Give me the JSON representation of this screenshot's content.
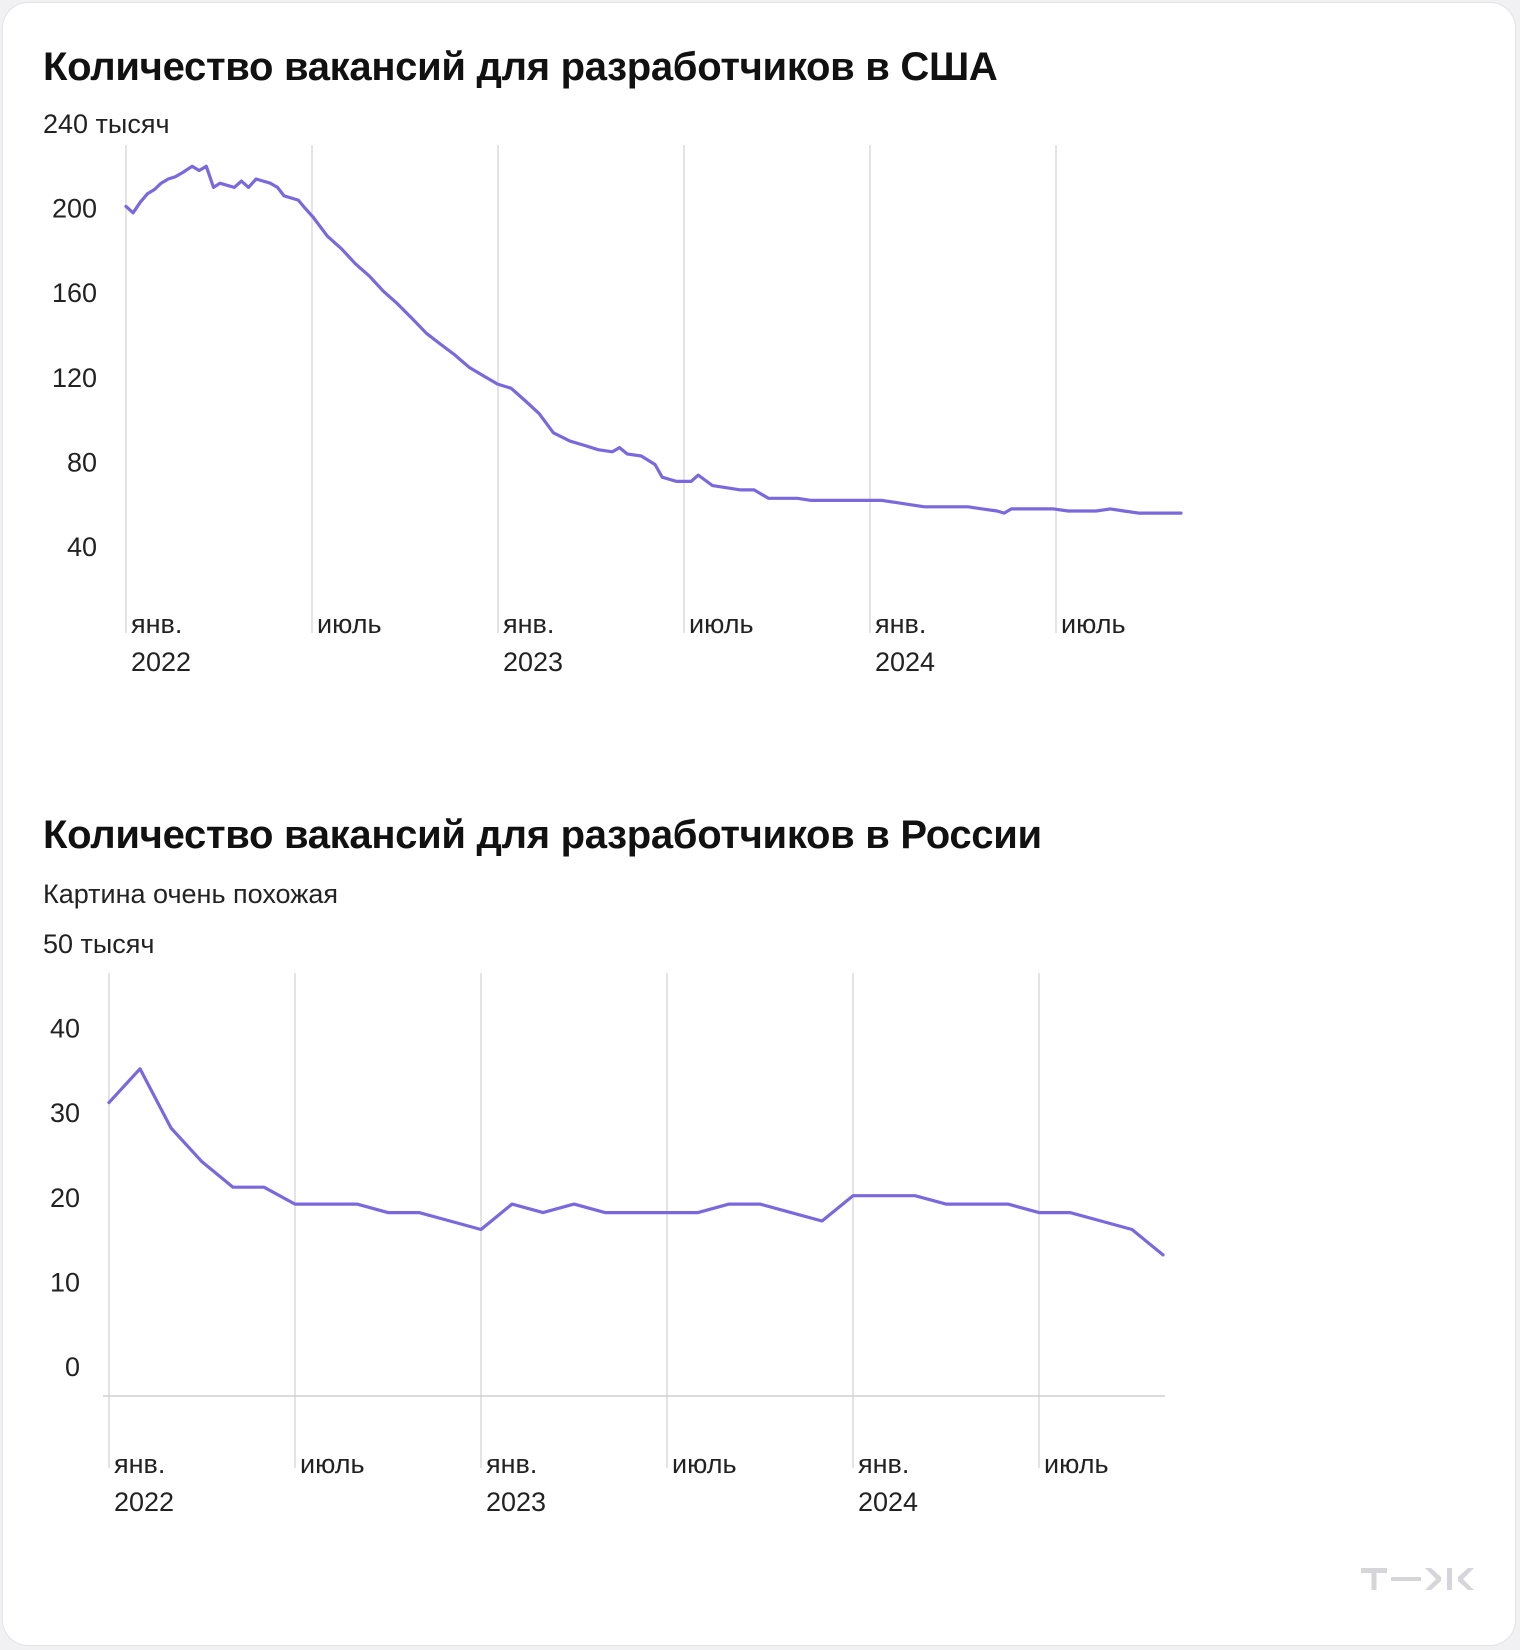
{
  "charts": [
    {
      "title": "Количество вакансий для разработчиков в США",
      "subtitle": "",
      "chart_data": {
        "type": "line",
        "title": "Количество вакансий для разработчиков в США",
        "xlabel": "",
        "ylabel": "",
        "x_range": [
          "2022-01",
          "2024-11"
        ],
        "ylim": [
          40,
          240
        ],
        "y_ticks": [
          {
            "value": 240,
            "label": "240 тысяч"
          },
          {
            "value": 200,
            "label": "200"
          },
          {
            "value": 160,
            "label": "160"
          },
          {
            "value": 120,
            "label": "120"
          },
          {
            "value": 80,
            "label": "80"
          },
          {
            "value": 40,
            "label": "40"
          }
        ],
        "x_ticks": [
          {
            "x": "2022-01",
            "line1": "янв.",
            "line2": "2022"
          },
          {
            "x": "2022-07",
            "line1": "июль",
            "line2": ""
          },
          {
            "x": "2023-01",
            "line1": "янв.",
            "line2": "2023"
          },
          {
            "x": "2023-07",
            "line1": "июль",
            "line2": ""
          },
          {
            "x": "2024-01",
            "line1": "янв.",
            "line2": "2024"
          },
          {
            "x": "2024-07",
            "line1": "июль",
            "line2": ""
          }
        ],
        "grid": "vertical",
        "series": [
          {
            "color": "#7b68dc",
            "points": [
              [
                "2022-01-01",
                210
              ],
              [
                "2022-01-08",
                207
              ],
              [
                "2022-01-15",
                212
              ],
              [
                "2022-01-22",
                216
              ],
              [
                "2022-01-29",
                218
              ],
              [
                "2022-02-05",
                221
              ],
              [
                "2022-02-12",
                223
              ],
              [
                "2022-02-19",
                224
              ],
              [
                "2022-02-26",
                226
              ],
              [
                "2022-03-05",
                229
              ],
              [
                "2022-03-12",
                227
              ],
              [
                "2022-03-19",
                229
              ],
              [
                "2022-03-26",
                219
              ],
              [
                "2022-04-02",
                221
              ],
              [
                "2022-04-09",
                220
              ],
              [
                "2022-04-16",
                219
              ],
              [
                "2022-04-23",
                222
              ],
              [
                "2022-04-30",
                219
              ],
              [
                "2022-05-07",
                223
              ],
              [
                "2022-05-14",
                222
              ],
              [
                "2022-05-21",
                221
              ],
              [
                "2022-05-28",
                219
              ],
              [
                "2022-06-04",
                215
              ],
              [
                "2022-06-11",
                214
              ],
              [
                "2022-06-18",
                213
              ],
              [
                "2022-06-25",
                209
              ],
              [
                "2022-07-02",
                205
              ],
              [
                "2022-07-16",
                196
              ],
              [
                "2022-07-30",
                190
              ],
              [
                "2022-08-13",
                183
              ],
              [
                "2022-08-27",
                177
              ],
              [
                "2022-09-10",
                170
              ],
              [
                "2022-09-24",
                164
              ],
              [
                "2022-10-08",
                157
              ],
              [
                "2022-10-22",
                150
              ],
              [
                "2022-11-05",
                145
              ],
              [
                "2022-11-19",
                140
              ],
              [
                "2022-12-03",
                134
              ],
              [
                "2022-12-17",
                130
              ],
              [
                "2022-12-31",
                126
              ],
              [
                "2023-01-14",
                124
              ],
              [
                "2023-01-28",
                118
              ],
              [
                "2023-02-11",
                112
              ],
              [
                "2023-02-25",
                103
              ],
              [
                "2023-03-11",
                99
              ],
              [
                "2023-03-25",
                97
              ],
              [
                "2023-04-08",
                95
              ],
              [
                "2023-04-22",
                94
              ],
              [
                "2023-04-29",
                96
              ],
              [
                "2023-05-06",
                93
              ],
              [
                "2023-05-20",
                92
              ],
              [
                "2023-06-03",
                88
              ],
              [
                "2023-06-10",
                82
              ],
              [
                "2023-06-24",
                80
              ],
              [
                "2023-07-08",
                80
              ],
              [
                "2023-07-15",
                83
              ],
              [
                "2023-07-29",
                78
              ],
              [
                "2023-08-12",
                77
              ],
              [
                "2023-08-26",
                76
              ],
              [
                "2023-09-09",
                76
              ],
              [
                "2023-09-23",
                72
              ],
              [
                "2023-10-07",
                72
              ],
              [
                "2023-10-21",
                72
              ],
              [
                "2023-11-04",
                71
              ],
              [
                "2023-11-18",
                71
              ],
              [
                "2023-12-02",
                71
              ],
              [
                "2023-12-16",
                71
              ],
              [
                "2023-12-30",
                71
              ],
              [
                "2024-01-13",
                71
              ],
              [
                "2024-01-27",
                70
              ],
              [
                "2024-02-10",
                69
              ],
              [
                "2024-02-24",
                68
              ],
              [
                "2024-03-09",
                68
              ],
              [
                "2024-03-23",
                68
              ],
              [
                "2024-04-06",
                68
              ],
              [
                "2024-04-20",
                67
              ],
              [
                "2024-05-04",
                66
              ],
              [
                "2024-05-11",
                65
              ],
              [
                "2024-05-18",
                67
              ],
              [
                "2024-06-01",
                67
              ],
              [
                "2024-06-15",
                67
              ],
              [
                "2024-06-29",
                67
              ],
              [
                "2024-07-13",
                66
              ],
              [
                "2024-07-27",
                66
              ],
              [
                "2024-08-10",
                66
              ],
              [
                "2024-08-24",
                67
              ],
              [
                "2024-09-07",
                66
              ],
              [
                "2024-09-21",
                65
              ],
              [
                "2024-10-05",
                65
              ],
              [
                "2024-10-19",
                65
              ],
              [
                "2024-11-02",
                65
              ]
            ]
          }
        ]
      }
    },
    {
      "title": "Количество вакансий для разработчиков в России",
      "subtitle": "Картина очень похожая",
      "chart_data": {
        "type": "line",
        "title": "Количество вакансий для разработчиков в России",
        "subtitle": "Картина очень похожая",
        "xlabel": "",
        "ylabel": "",
        "x_range": [
          "2022-01",
          "2024-12"
        ],
        "ylim": [
          0,
          50
        ],
        "y_ticks": [
          {
            "value": 50,
            "label": "50 тысяч"
          },
          {
            "value": 40,
            "label": "40"
          },
          {
            "value": 30,
            "label": "30"
          },
          {
            "value": 20,
            "label": "20"
          },
          {
            "value": 10,
            "label": "10"
          },
          {
            "value": 0,
            "label": "0"
          }
        ],
        "x_ticks": [
          {
            "x": "2022-01",
            "line1": "янв.",
            "line2": "2022"
          },
          {
            "x": "2022-07",
            "line1": "июль",
            "line2": ""
          },
          {
            "x": "2023-01",
            "line1": "янв.",
            "line2": "2023"
          },
          {
            "x": "2023-07",
            "line1": "июль",
            "line2": ""
          },
          {
            "x": "2024-01",
            "line1": "янв.",
            "line2": "2024"
          },
          {
            "x": "2024-07",
            "line1": "июль",
            "line2": ""
          }
        ],
        "grid": "vertical",
        "series": [
          {
            "color": "#7b68dc",
            "points": [
              [
                "2022-01",
                33.5
              ],
              [
                "2022-02",
                37.5
              ],
              [
                "2022-03",
                30.5
              ],
              [
                "2022-04",
                26.5
              ],
              [
                "2022-05",
                23.5
              ],
              [
                "2022-06",
                23.5
              ],
              [
                "2022-07",
                21.5
              ],
              [
                "2022-08",
                21.5
              ],
              [
                "2022-09",
                21.5
              ],
              [
                "2022-10",
                20.5
              ],
              [
                "2022-11",
                20.5
              ],
              [
                "2022-12",
                19.5
              ],
              [
                "2023-01",
                18.5
              ],
              [
                "2023-02",
                21.5
              ],
              [
                "2023-03",
                20.5
              ],
              [
                "2023-04",
                21.5
              ],
              [
                "2023-05",
                20.5
              ],
              [
                "2023-06",
                20.5
              ],
              [
                "2023-07",
                20.5
              ],
              [
                "2023-08",
                20.5
              ],
              [
                "2023-09",
                21.5
              ],
              [
                "2023-10",
                21.5
              ],
              [
                "2023-11",
                20.5
              ],
              [
                "2023-12",
                19.5
              ],
              [
                "2024-01",
                22.5
              ],
              [
                "2024-02",
                22.5
              ],
              [
                "2024-03",
                22.5
              ],
              [
                "2024-04",
                21.5
              ],
              [
                "2024-05",
                21.5
              ],
              [
                "2024-06",
                21.5
              ],
              [
                "2024-07",
                20.5
              ],
              [
                "2024-08",
                20.5
              ],
              [
                "2024-09",
                19.5
              ],
              [
                "2024-10",
                18.5
              ],
              [
                "2024-11",
                15.5
              ]
            ]
          }
        ]
      }
    }
  ],
  "watermark": {
    "text": "т—ж",
    "color": "#d6d6da"
  }
}
